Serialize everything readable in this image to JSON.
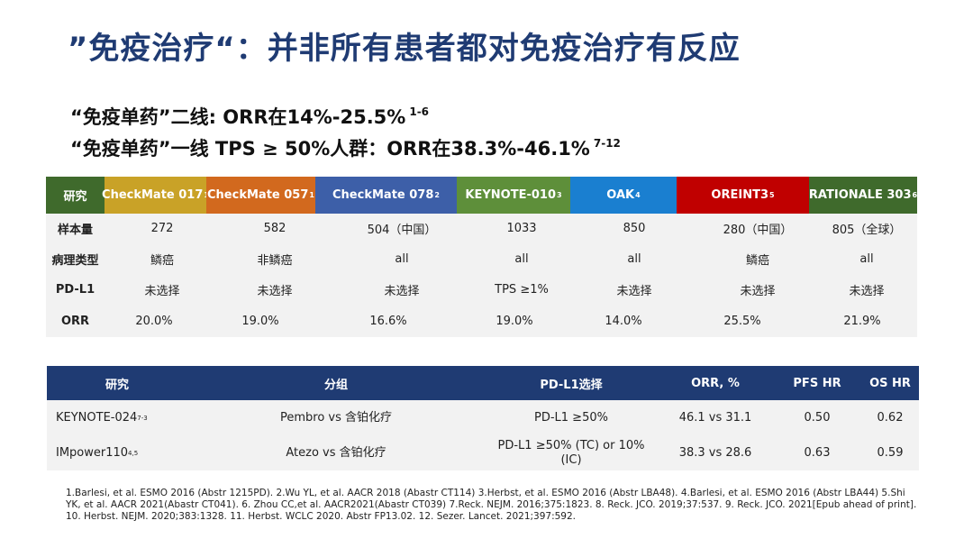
{
  "title": "”免疫治疗“：并非所有患者都对免疫治疗有反应",
  "sub1": {
    "text": "“免疫单药”二线: ORR在14%-25.5%",
    "ref": "1-6"
  },
  "sub2": {
    "text": "“免疫单药”一线 TPS ≥ 50%人群：ORR在38.3%-46.1%",
    "ref": "7-12"
  },
  "table1": {
    "corner": "研究",
    "studies": [
      {
        "name": "CheckMate 017",
        "ref": "1",
        "color": "#c9a227"
      },
      {
        "name": "CheckMate 057",
        "ref": "1",
        "color": "#d2691e"
      },
      {
        "name": "CheckMate 078",
        "ref": "2",
        "color": "#3d5fa8"
      },
      {
        "name": "KEYNOTE-010",
        "ref": "3",
        "color": "#5e8f3a"
      },
      {
        "name": "OAK",
        "ref": "4",
        "color": "#1a7fd0"
      },
      {
        "name": "OREINT3",
        "ref": "5",
        "color": "#c00000"
      },
      {
        "name": "RATIONALE 303",
        "ref": "6",
        "color": "#3f6a2c"
      }
    ],
    "corner_color": "#3f6a2c",
    "rows": [
      {
        "label": "样本量",
        "values": [
          "272",
          "582",
          "504（中国）",
          "1033",
          "850",
          "280（中国）",
          "805（全球）"
        ]
      },
      {
        "label": "病理类型",
        "values": [
          "鳞癌",
          "非鳞癌",
          "all",
          "all",
          "all",
          "鳞癌",
          "all"
        ]
      },
      {
        "label": "PD-L1",
        "values": [
          "未选择",
          "未选择",
          "未选择",
          "TPS ≥1%",
          "未选择",
          "未选择",
          "未选择"
        ]
      },
      {
        "label": "ORR",
        "values": [
          "20.0%",
          "19.0%",
          "16.6%",
          "19.0%",
          "14.0%",
          "25.5%",
          "21.9%"
        ]
      }
    ]
  },
  "table2": {
    "headers": [
      "研究",
      "分组",
      "PD-L1选择",
      "ORR, %",
      "PFS HR",
      "OS HR"
    ],
    "rows": [
      {
        "study": "KEYNOTE-024",
        "ref": "7-3",
        "group": "Pembro vs 含铂化疗",
        "pdl1": "PD-L1 ≥50%",
        "orr": "46.1 vs 31.1",
        "pfs": "0.50",
        "os": "0.62"
      },
      {
        "study": "IMpower110",
        "ref": "4,5",
        "group": "Atezo vs  含铂化疗",
        "pdl1": "PD-L1 ≥50% (TC) or 10% (IC)",
        "orr": "38.3 vs 28.6",
        "pfs": "0.63",
        "os": "0.59"
      }
    ]
  },
  "references": "1.Barlesi, et al. ESMO 2016 (Abstr 1215PD). 2.Wu YL, et al. AACR 2018 (Abastr CT114) 3.Herbst, et al. ESMO 2016 (Abstr LBA48). 4.Barlesi, et al. ESMO 2016 (Abstr LBA44) 5.Shi YK, et al. AACR 2021(Abastr CT041). 6. Zhou CC,et al. AACR2021(Abastr CT039) 7.Reck. NEJM. 2016;375:1823. 8. Reck. JCO. 2019;37:537. 9. Reck. JCO. 2021[Epub ahead of print]. 10. Herbst. NEJM. 2020;383:1328. 11. Herbst. WCLC 2020. Abstr FP13.02. 12. Sezer. Lancet. 2021;397:592."
}
